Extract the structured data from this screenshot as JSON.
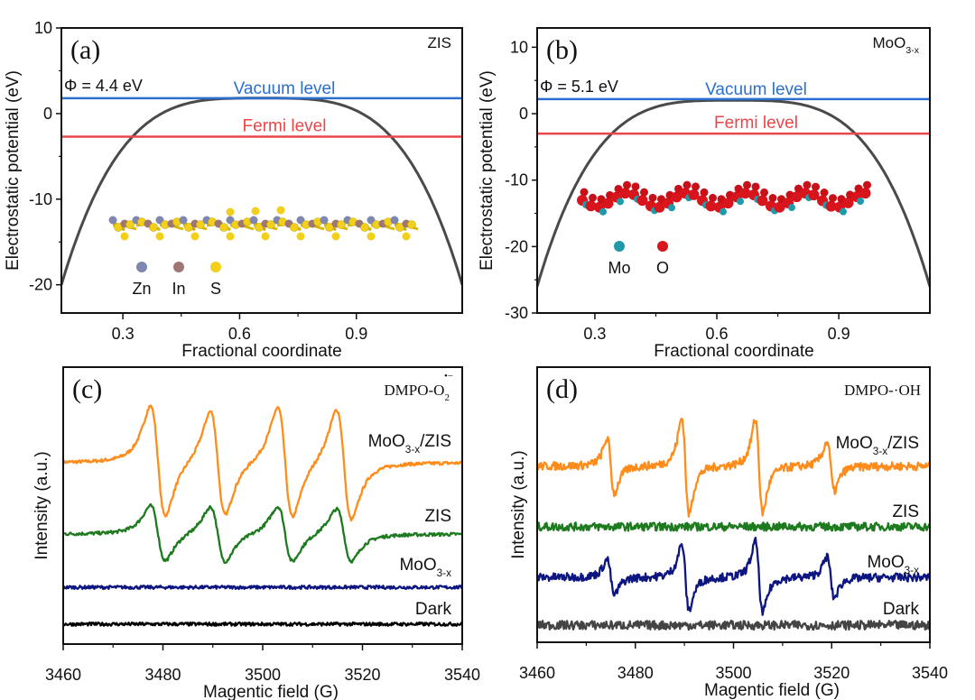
{
  "chart_data": [
    {
      "panel": "a",
      "type": "line",
      "label": "(a)",
      "title_main": "ZIS",
      "title_sub": "",
      "xlabel": "Fractional coordinate",
      "ylabel": "Electrostatic potential (eV)",
      "xlim": [
        0.142,
        1.172
      ],
      "ylim": [
        -23.3,
        10
      ],
      "xticks": [
        0.3,
        0.6,
        0.9
      ],
      "xtick_labels": [
        "0.3",
        "0.6",
        "0.9"
      ],
      "yticks": [
        10,
        0,
        -10,
        -20
      ],
      "ytick_labels": [
        "10",
        "0",
        "-10",
        "-20"
      ],
      "work_function": "Φ = 4.4 eV",
      "vacuum_level": {
        "label": "Vacuum level",
        "value": 1.8,
        "color": "#2a6fd0"
      },
      "fermi_level": {
        "label": "Fermi level",
        "value": -2.7,
        "color": "#e8474a"
      },
      "potential": {
        "min": -20,
        "max": 1.8,
        "center": 0.657,
        "halfwidth": 0.515,
        "color": "#4a4a4a"
      },
      "legend": [
        {
          "name": "Zn",
          "color": "#7f86b0"
        },
        {
          "name": "In",
          "color": "#9e7672"
        },
        {
          "name": "S",
          "color": "#f2cf1a"
        }
      ]
    },
    {
      "panel": "b",
      "type": "line",
      "label": "(b)",
      "title_main": "MoO",
      "title_sub": "3-x",
      "xlabel": "Fractional coordinate",
      "ylabel": "Electrostatic potential (eV)",
      "xlim": [
        0.158,
        1.124
      ],
      "ylim": [
        -30,
        12.9
      ],
      "xticks": [
        0.3,
        0.6,
        0.9
      ],
      "xtick_labels": [
        "0.3",
        "0.6",
        "0.9"
      ],
      "yticks": [
        10,
        0,
        -10,
        -20,
        -30
      ],
      "ytick_labels": [
        "10",
        "0",
        "-10",
        "-20",
        "-30"
      ],
      "work_function": "Φ = 5.1 eV",
      "vacuum_level": {
        "label": "Vacuum level",
        "value": 2.2,
        "color": "#2a6fd0"
      },
      "fermi_level": {
        "label": "Fermi level",
        "value": -3.0,
        "color": "#e8474a"
      },
      "potential": {
        "min": -26,
        "max": 2.0,
        "center": 0.641,
        "halfwidth": 0.483,
        "color": "#4a4a4a"
      },
      "legend": [
        {
          "name": "Mo",
          "color": "#1f9aa8"
        },
        {
          "name": "O",
          "color": "#d8141c"
        }
      ]
    },
    {
      "panel": "c",
      "type": "line",
      "label": "(c)",
      "title_main": "DMPO-O",
      "title_sub": "2",
      "title_sup": "•−",
      "xlabel": "Magentic field (G)",
      "ylabel": "Intensity (a.u.)",
      "xlim": [
        3460,
        3540
      ],
      "ylim": [
        0,
        10
      ],
      "xticks": [
        3460,
        3480,
        3500,
        3520,
        3540
      ],
      "xtick_labels": [
        "3460",
        "3480",
        "3500",
        "3520",
        "3540"
      ],
      "linewidth_G": 2.6,
      "series": [
        {
          "name_main": "MoO",
          "name_sub": "3-x",
          "name_suffix": "/ZIS",
          "color": "#ff8c1a",
          "offset": 6.55,
          "noise": 0.06,
          "centers": [
            3479,
            3491,
            3504.5,
            3516.3
          ],
          "amps": [
            2.0,
            1.9,
            2.0,
            2.0
          ]
        },
        {
          "name_main": "ZIS",
          "name_sub": "",
          "name_suffix": "",
          "color": "#1e7a1e",
          "offset": 3.97,
          "noise": 0.06,
          "centers": [
            3479,
            3491,
            3504.5,
            3516.3
          ],
          "amps": [
            1.0,
            1.0,
            1.0,
            0.95
          ]
        },
        {
          "name_main": "MoO",
          "name_sub": "3-x",
          "name_suffix": "",
          "color": "#0c1580",
          "offset": 2.05,
          "noise": 0.06,
          "centers": [],
          "amps": []
        },
        {
          "name_main": "Dark",
          "name_sub": "",
          "name_suffix": "",
          "color": "#000000",
          "offset": 0.72,
          "noise": 0.06,
          "centers": [],
          "amps": []
        }
      ]
    },
    {
      "panel": "d",
      "type": "line",
      "label": "(d)",
      "title_main": "DMPO-·OH",
      "title_sub": "",
      "xlabel": "Magentic field (G)",
      "ylabel": "Intensity (a.u.)",
      "xlim": [
        3460,
        3540
      ],
      "ylim": [
        0,
        10
      ],
      "xticks": [
        3460,
        3480,
        3500,
        3520,
        3540
      ],
      "xtick_labels": [
        "3460",
        "3480",
        "3500",
        "3520",
        "3540"
      ],
      "linewidth_G": 1.3,
      "series": [
        {
          "name_main": "MoO",
          "name_sub": "3-x",
          "name_suffix": "/ZIS",
          "color": "#ff8c1a",
          "offset": 6.4,
          "noise": 0.15,
          "centers": [
            3475,
            3490.2,
            3505.2,
            3519.8
          ],
          "amps": [
            1.0,
            1.75,
            1.7,
            0.9
          ]
        },
        {
          "name_main": "ZIS",
          "name_sub": "",
          "name_suffix": "",
          "color": "#1e7a1e",
          "offset": 4.2,
          "noise": 0.15,
          "centers": [],
          "amps": []
        },
        {
          "name_main": "MoO",
          "name_sub": "3-x",
          "name_suffix": "",
          "color": "#0c1580",
          "offset": 2.36,
          "noise": 0.15,
          "centers": [
            3475,
            3490.2,
            3505.2,
            3519.8
          ],
          "amps": [
            0.65,
            1.2,
            1.3,
            0.75
          ]
        },
        {
          "name_main": "Dark",
          "name_sub": "",
          "name_suffix": "",
          "color": "#444444",
          "offset": 0.62,
          "noise": 0.16,
          "centers": [],
          "amps": []
        }
      ]
    }
  ]
}
